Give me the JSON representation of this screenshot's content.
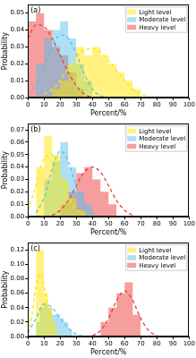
{
  "chart_data": [
    {
      "type": "histogram",
      "title": "(a)",
      "x_label": "Percent/%",
      "y_label": "Probability",
      "xlim": [
        0,
        100
      ],
      "xticks": [
        0,
        10,
        20,
        30,
        40,
        50,
        60,
        70,
        80,
        90,
        100
      ],
      "ylim": [
        0,
        0.055
      ],
      "yticks": [
        {
          "value": 0,
          "label": "0.00"
        },
        0.01,
        0.02,
        0.03,
        0.04,
        0.05
      ],
      "grid": false,
      "legend": "upper right",
      "series": [
        {
          "name": "Light level",
          "color": "#ffe600",
          "line_style": "dashed",
          "bins": [
            15,
            20,
            25,
            30,
            35,
            40,
            45,
            50,
            55,
            60,
            65,
            70
          ],
          "values": [
            0.005,
            0.01,
            0.02,
            0.03,
            0.025,
            0.03,
            0.025,
            0.02,
            0.015,
            0.01,
            0.005
          ],
          "fit": {
            "x": [
              10,
              15,
              20,
              25,
              30,
              35,
              40,
              45,
              50,
              55,
              60,
              65,
              70,
              75
            ],
            "y": [
              0.002,
              0.005,
              0.01,
              0.017,
              0.024,
              0.028,
              0.029,
              0.027,
              0.022,
              0.016,
              0.01,
              0.005,
              0.002,
              0.001
            ]
          }
        },
        {
          "name": "Moderate level",
          "color": "#5bc0eb",
          "line_style": "dashed",
          "bins": [
            5,
            10,
            15,
            20,
            25,
            30,
            35,
            40
          ],
          "values": [
            0.02,
            0.035,
            0.04,
            0.045,
            0.035,
            0.02,
            0.01
          ],
          "fit": {
            "x": [
              0,
              5,
              10,
              15,
              20,
              25,
              30,
              35,
              40,
              45,
              50
            ],
            "y": [
              0.002,
              0.008,
              0.018,
              0.03,
              0.037,
              0.035,
              0.026,
              0.014,
              0.005,
              0.001,
              0
            ]
          }
        },
        {
          "name": "Heavy level",
          "color": "#ee3b3b",
          "line_style": "dashed",
          "bins": [
            0,
            5,
            10,
            15,
            20,
            25,
            30,
            35
          ],
          "values": [
            0.045,
            0.05,
            0.04,
            0.03,
            0.025,
            0.015,
            0.005
          ],
          "fit": {
            "x": [
              0,
              5,
              10,
              15,
              20,
              25,
              30,
              35,
              40
            ],
            "y": [
              0.035,
              0.043,
              0.042,
              0.035,
              0.025,
              0.015,
              0.007,
              0.002,
              0
            ]
          }
        }
      ]
    },
    {
      "type": "histogram",
      "title": "(b)",
      "x_label": "Percent/%",
      "y_label": "Probability",
      "xlim": [
        0,
        100
      ],
      "xticks": [
        0,
        10,
        20,
        30,
        40,
        50,
        60,
        70,
        80,
        90,
        100
      ],
      "ylim": [
        0,
        0.075
      ],
      "yticks": [
        {
          "value": 0,
          "label": "0.00"
        },
        0.01,
        0.02,
        0.03,
        0.04,
        0.05,
        0.06,
        0.07
      ],
      "grid": false,
      "legend": "upper right",
      "series": [
        {
          "name": "Light level",
          "color": "#ffe600",
          "line_style": "dashed",
          "bins": [
            5,
            10,
            15,
            20,
            25,
            30,
            35
          ],
          "values": [
            0.04,
            0.065,
            0.05,
            0.03,
            0.015,
            0.005
          ],
          "fit": {
            "x": [
              0,
              5,
              10,
              15,
              20,
              25,
              30,
              35,
              40
            ],
            "y": [
              0.005,
              0.025,
              0.047,
              0.05,
              0.035,
              0.017,
              0.006,
              0.002,
              0
            ]
          }
        },
        {
          "name": "Moderate level",
          "color": "#5bc0eb",
          "line_style": "dashed",
          "bins": [
            10,
            15,
            20,
            25,
            30,
            35,
            40
          ],
          "values": [
            0.03,
            0.045,
            0.06,
            0.04,
            0.02,
            0.01
          ],
          "fit": {
            "x": [
              5,
              10,
              15,
              20,
              25,
              30,
              35,
              40,
              45
            ],
            "y": [
              0.003,
              0.015,
              0.038,
              0.053,
              0.045,
              0.025,
              0.01,
              0.003,
              0
            ]
          }
        },
        {
          "name": "Heavy level",
          "color": "#ee3b3b",
          "line_style": "dashed",
          "bins": [
            20,
            25,
            30,
            35,
            40,
            45,
            50,
            55
          ],
          "values": [
            0.01,
            0.02,
            0.035,
            0.04,
            0.03,
            0.02,
            0.01
          ],
          "fit": {
            "x": [
              15,
              20,
              25,
              30,
              35,
              40,
              45,
              50,
              55,
              60,
              65
            ],
            "y": [
              0.001,
              0.005,
              0.013,
              0.025,
              0.036,
              0.04,
              0.036,
              0.025,
              0.013,
              0.005,
              0.001
            ]
          }
        }
      ]
    },
    {
      "type": "histogram",
      "title": "(c)",
      "x_label": "Percent/%",
      "y_label": "Probability",
      "xlim": [
        0,
        100
      ],
      "xticks": [
        0,
        10,
        20,
        30,
        40,
        50,
        60,
        70,
        80,
        90,
        100
      ],
      "ylim": [
        0,
        0.13
      ],
      "yticks": [
        {
          "value": 0,
          "label": "0.00"
        },
        0.02,
        0.04,
        0.06,
        0.08,
        {
          "value": 0.1,
          "label": "0.10"
        },
        0.12
      ],
      "grid": false,
      "legend": "upper right",
      "series": [
        {
          "name": "Light level",
          "color": "#ffe600",
          "line_style": "dashed",
          "bins": [
            5,
            7.5,
            10,
            12.5,
            15,
            17.5
          ],
          "values": [
            0.12,
            0.12,
            0.06,
            0.04,
            0.02
          ],
          "fit": {
            "x": [
              0,
              2.5,
              5,
              7.5,
              10,
              12.5,
              15,
              17.5,
              20,
              22.5
            ],
            "y": [
              0.005,
              0.03,
              0.07,
              0.087,
              0.07,
              0.04,
              0.015,
              0.005,
              0.001,
              0
            ]
          }
        },
        {
          "name": "Moderate level",
          "color": "#5bc0eb",
          "line_style": "dashed",
          "bins": [
            5,
            7.5,
            10,
            12.5,
            15,
            17.5,
            20,
            22.5,
            25,
            27.5
          ],
          "values": [
            0.02,
            0.04,
            0.045,
            0.04,
            0.03,
            0.03,
            0.025,
            0.02,
            0.01
          ],
          "fit": {
            "x": [
              0,
              5,
              10,
              15,
              20,
              25,
              30,
              35
            ],
            "y": [
              0.005,
              0.025,
              0.045,
              0.04,
              0.025,
              0.012,
              0.003,
              0
            ]
          }
        },
        {
          "name": "Heavy level",
          "color": "#ee3b3b",
          "line_style": "dashed",
          "bins": [
            45,
            50,
            55,
            60,
            65,
            70
          ],
          "values": [
            0.02,
            0.04,
            0.06,
            0.075,
            0.03
          ],
          "fit": {
            "x": [
              40,
              45,
              50,
              55,
              60,
              65,
              70,
              75,
              80
            ],
            "y": [
              0.001,
              0.008,
              0.025,
              0.05,
              0.063,
              0.05,
              0.025,
              0.008,
              0.001
            ]
          }
        }
      ]
    }
  ]
}
